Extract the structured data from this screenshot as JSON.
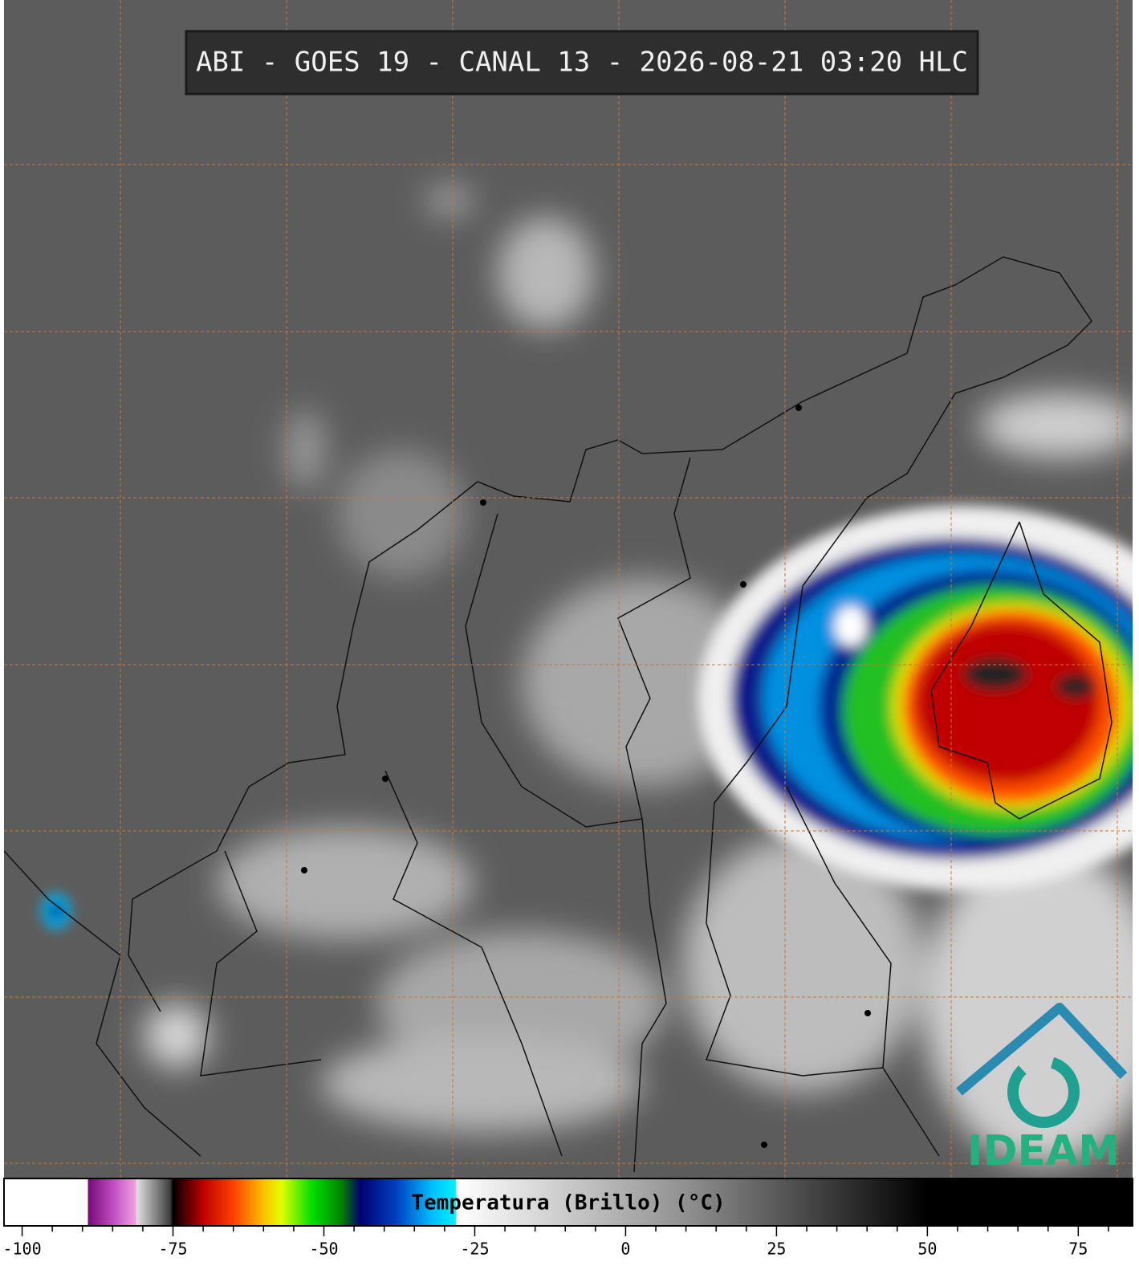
{
  "header": {
    "title": "ABI - GOES 19 - CANAL 13 - 2026-08-21 03:20 HLC"
  },
  "logo": {
    "text": "IDEAM"
  },
  "colorbar": {
    "label": "Temperatura (Brillo) (°C)",
    "lim": [
      -103,
      84
    ],
    "ticks": [
      -100,
      -75,
      -50,
      -25,
      0,
      25,
      50,
      75
    ],
    "minor_ticks": [
      -95,
      -90,
      -85,
      -80,
      -70,
      -65,
      -60,
      -55,
      -45,
      -40,
      -35,
      -30,
      -20,
      -15,
      -10,
      -5,
      5,
      10,
      15,
      20,
      30,
      35,
      40,
      45,
      55,
      60,
      65,
      70,
      80
    ],
    "stops": [
      {
        "value": -103,
        "color": "#ffffff"
      },
      {
        "value": -89.2,
        "color": "#ffffff"
      },
      {
        "value": -89,
        "color": "#7a0a7a"
      },
      {
        "value": -85,
        "color": "#c04cc0"
      },
      {
        "value": -81.2,
        "color": "#f0a0e0"
      },
      {
        "value": -81,
        "color": "#e0e0e0"
      },
      {
        "value": -75.5,
        "color": "#404040"
      },
      {
        "value": -75,
        "color": "#000000"
      },
      {
        "value": -70,
        "color": "#c00000"
      },
      {
        "value": -65,
        "color": "#ff4000"
      },
      {
        "value": -60,
        "color": "#ffc000"
      },
      {
        "value": -57,
        "color": "#e0ff00"
      },
      {
        "value": -52,
        "color": "#00e000"
      },
      {
        "value": -47,
        "color": "#008000"
      },
      {
        "value": -44,
        "color": "#000070"
      },
      {
        "value": -38,
        "color": "#0040c0"
      },
      {
        "value": -32,
        "color": "#00c0ff"
      },
      {
        "value": -28.2,
        "color": "#00f0ff"
      },
      {
        "value": -28,
        "color": "#ffffff"
      },
      {
        "value": 10,
        "color": "#909090"
      },
      {
        "value": 50,
        "color": "#000000"
      },
      {
        "value": 84,
        "color": "#000000"
      }
    ]
  }
}
